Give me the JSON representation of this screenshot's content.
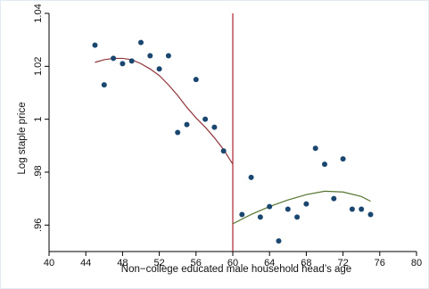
{
  "chart_data": {
    "type": "scatter",
    "xlabel": "Non−college educated male household head’s age",
    "ylabel": "Log staple price",
    "xlim": [
      40,
      80
    ],
    "ylim": [
      0.95,
      1.04
    ],
    "xticks": [
      40,
      44,
      48,
      52,
      56,
      60,
      64,
      68,
      72,
      76,
      80
    ],
    "yticks": [
      0.96,
      0.98,
      1.0,
      1.02,
      1.04
    ],
    "ytick_labels": [
      ".96",
      ".98",
      "1",
      "1.02",
      "1.04"
    ],
    "grid": false,
    "cutoff": 60,
    "colors": {
      "points": "#1a476f",
      "fit_left": "#90353b",
      "fit_right": "#55752f",
      "cutoff": "#b22234"
    },
    "points": [
      {
        "x": 45,
        "y": 1.028
      },
      {
        "x": 46,
        "y": 1.013
      },
      {
        "x": 47,
        "y": 1.023
      },
      {
        "x": 48,
        "y": 1.021
      },
      {
        "x": 49,
        "y": 1.022
      },
      {
        "x": 50,
        "y": 1.029
      },
      {
        "x": 51,
        "y": 1.024
      },
      {
        "x": 52,
        "y": 1.019
      },
      {
        "x": 53,
        "y": 1.024
      },
      {
        "x": 54,
        "y": 0.995
      },
      {
        "x": 55,
        "y": 0.998
      },
      {
        "x": 56,
        "y": 1.015
      },
      {
        "x": 57,
        "y": 1.0
      },
      {
        "x": 58,
        "y": 0.997
      },
      {
        "x": 59,
        "y": 0.988
      },
      {
        "x": 61,
        "y": 0.964
      },
      {
        "x": 62,
        "y": 0.978
      },
      {
        "x": 63,
        "y": 0.963
      },
      {
        "x": 64,
        "y": 0.967
      },
      {
        "x": 65,
        "y": 0.954
      },
      {
        "x": 66,
        "y": 0.966
      },
      {
        "x": 67,
        "y": 0.963
      },
      {
        "x": 68,
        "y": 0.968
      },
      {
        "x": 69,
        "y": 0.989
      },
      {
        "x": 70,
        "y": 0.983
      },
      {
        "x": 71,
        "y": 0.97
      },
      {
        "x": 72,
        "y": 0.985
      },
      {
        "x": 73,
        "y": 0.966
      },
      {
        "x": 74,
        "y": 0.966
      },
      {
        "x": 75,
        "y": 0.964
      }
    ],
    "fit_left": [
      {
        "x": 45,
        "y": 1.0215
      },
      {
        "x": 46,
        "y": 1.0225
      },
      {
        "x": 47,
        "y": 1.023
      },
      {
        "x": 48,
        "y": 1.023
      },
      {
        "x": 49,
        "y": 1.0225
      },
      {
        "x": 50,
        "y": 1.021
      },
      {
        "x": 51,
        "y": 1.019
      },
      {
        "x": 52,
        "y": 1.0165
      },
      {
        "x": 53,
        "y": 1.013
      },
      {
        "x": 54,
        "y": 1.009
      },
      {
        "x": 55,
        "y": 1.0045
      },
      {
        "x": 56,
        "y": 1.0005
      },
      {
        "x": 57,
        "y": 0.997
      },
      {
        "x": 58,
        "y": 0.993
      },
      {
        "x": 59,
        "y": 0.9885
      },
      {
        "x": 60,
        "y": 0.983
      }
    ],
    "fit_right": [
      {
        "x": 60,
        "y": 0.9605
      },
      {
        "x": 62,
        "y": 0.964
      },
      {
        "x": 64,
        "y": 0.967
      },
      {
        "x": 66,
        "y": 0.9695
      },
      {
        "x": 68,
        "y": 0.9715
      },
      {
        "x": 70,
        "y": 0.9728
      },
      {
        "x": 72,
        "y": 0.9725
      },
      {
        "x": 74,
        "y": 0.9708
      },
      {
        "x": 75,
        "y": 0.969
      }
    ]
  }
}
